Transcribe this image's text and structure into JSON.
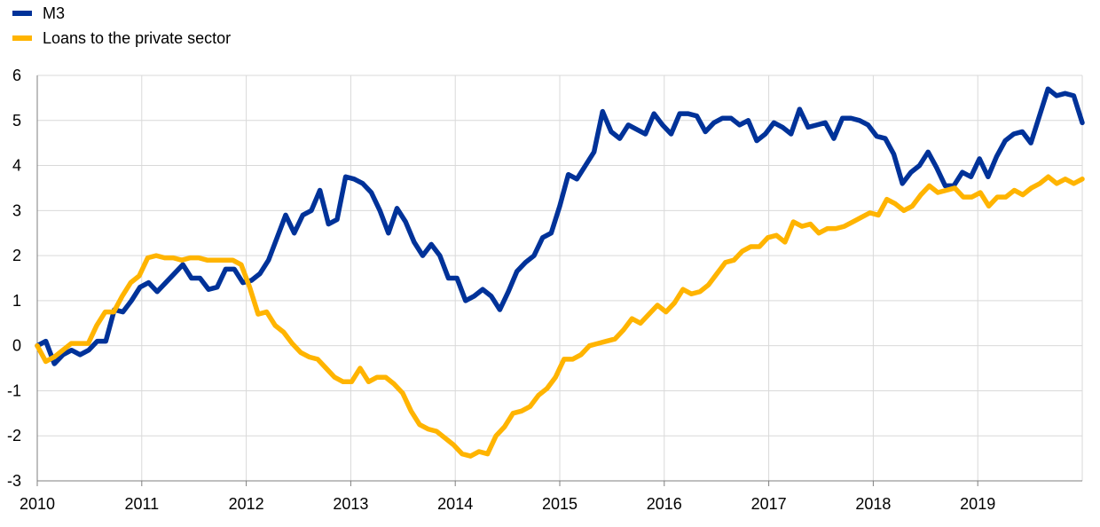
{
  "chart_data": {
    "type": "line",
    "title": "",
    "xlabel": "",
    "ylabel": "",
    "ylim": [
      -3,
      6
    ],
    "y_ticks": [
      "6",
      "5",
      "4",
      "3",
      "2",
      "1",
      "0",
      "-1",
      "-2",
      "-3"
    ],
    "x_ticks": [
      "2010",
      "2011",
      "2012",
      "2013",
      "2014",
      "2015",
      "2016",
      "2017",
      "2018",
      "2019"
    ],
    "x_start_year": 2010,
    "x_end_year": 2020,
    "grid": "vertical and horizontal",
    "legend_position": "top-left",
    "series": [
      {
        "name": "M3",
        "color": "#003299",
        "values": [
          0.0,
          0.1,
          -0.4,
          -0.2,
          -0.1,
          -0.2,
          -0.1,
          0.1,
          0.1,
          0.8,
          0.75,
          1.0,
          1.3,
          1.4,
          1.2,
          1.4,
          1.6,
          1.8,
          1.5,
          1.5,
          1.25,
          1.3,
          1.7,
          1.7,
          1.4,
          1.45,
          1.6,
          1.9,
          2.4,
          2.9,
          2.5,
          2.9,
          3.0,
          3.45,
          2.7,
          2.8,
          3.75,
          3.7,
          3.6,
          3.4,
          3.0,
          2.5,
          3.05,
          2.75,
          2.3,
          2.0,
          2.25,
          2.0,
          1.5,
          1.5,
          1.0,
          1.1,
          1.25,
          1.1,
          0.8,
          1.2,
          1.65,
          1.85,
          2.0,
          2.4,
          2.5,
          3.1,
          3.8,
          3.7,
          4.0,
          4.3,
          5.2,
          4.75,
          4.6,
          4.9,
          4.8,
          4.7,
          5.15,
          4.9,
          4.7,
          5.15,
          5.15,
          5.1,
          4.75,
          4.95,
          5.05,
          5.05,
          4.9,
          5.0,
          4.55,
          4.7,
          4.95,
          4.85,
          4.7,
          5.25,
          4.85,
          4.9,
          4.95,
          4.6,
          5.05,
          5.05,
          5.0,
          4.9,
          4.65,
          4.6,
          4.25,
          3.6,
          3.85,
          4.0,
          4.3,
          3.95,
          3.55,
          3.55,
          3.85,
          3.75,
          4.15,
          3.75,
          4.2,
          4.55,
          4.7,
          4.75,
          4.5,
          5.1,
          5.7,
          5.55,
          5.6,
          5.55,
          4.95
        ]
      },
      {
        "name": "Loans to the private sector",
        "color": "#FFB400",
        "values": [
          0.0,
          -0.35,
          -0.25,
          -0.1,
          0.05,
          0.05,
          0.05,
          0.45,
          0.75,
          0.75,
          1.1,
          1.4,
          1.55,
          1.95,
          2.0,
          1.95,
          1.95,
          1.9,
          1.95,
          1.95,
          1.9,
          1.9,
          1.9,
          1.9,
          1.8,
          1.3,
          0.7,
          0.75,
          0.45,
          0.3,
          0.05,
          -0.15,
          -0.25,
          -0.3,
          -0.5,
          -0.7,
          -0.8,
          -0.8,
          -0.5,
          -0.8,
          -0.7,
          -0.7,
          -0.85,
          -1.05,
          -1.45,
          -1.75,
          -1.85,
          -1.9,
          -2.05,
          -2.2,
          -2.4,
          -2.45,
          -2.35,
          -2.4,
          -2.0,
          -1.8,
          -1.5,
          -1.45,
          -1.35,
          -1.1,
          -0.95,
          -0.7,
          -0.3,
          -0.3,
          -0.2,
          0.0,
          0.05,
          0.1,
          0.15,
          0.35,
          0.6,
          0.5,
          0.7,
          0.9,
          0.75,
          0.95,
          1.25,
          1.15,
          1.2,
          1.35,
          1.6,
          1.85,
          1.9,
          2.1,
          2.2,
          2.2,
          2.4,
          2.45,
          2.3,
          2.75,
          2.65,
          2.7,
          2.5,
          2.6,
          2.6,
          2.65,
          2.75,
          2.85,
          2.95,
          2.9,
          3.25,
          3.15,
          3.0,
          3.1,
          3.35,
          3.55,
          3.4,
          3.45,
          3.5,
          3.3,
          3.3,
          3.4,
          3.1,
          3.3,
          3.3,
          3.45,
          3.35,
          3.5,
          3.6,
          3.75,
          3.6,
          3.7,
          3.6,
          3.7
        ]
      }
    ]
  }
}
